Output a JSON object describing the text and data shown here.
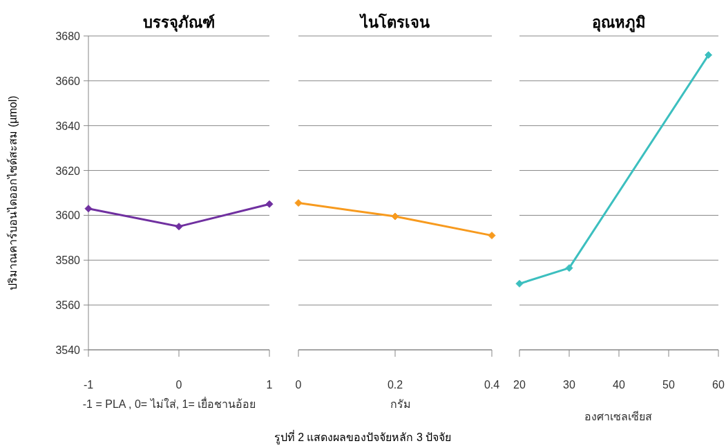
{
  "chart_data": [
    {
      "type": "line",
      "title": "บรรจุภัณฑ์",
      "xlabel": "-1 = PLA , 0= ไม่ใส่, 1= เยื่อชานอ้อย",
      "ylabel": "ปริมาณคาร์บอนไดออกไซด์สะสม (µmol)",
      "x": [
        -1,
        0,
        1
      ],
      "xlim": [
        -1,
        1
      ],
      "xticks": [
        -1,
        0,
        1
      ],
      "ylim": [
        3540,
        3680
      ],
      "yticks": [
        3540,
        3560,
        3580,
        3600,
        3620,
        3640,
        3660,
        3680
      ],
      "grid": "y",
      "marker": "diamond",
      "line_style": "solid",
      "series": [
        {
          "color": "#7030a0",
          "values": [
            3603,
            3595,
            3605
          ]
        }
      ]
    },
    {
      "type": "line",
      "title": "ไนโตรเจน",
      "xlabel": "กรัม",
      "x": [
        0,
        0.2,
        0.4
      ],
      "xlim": [
        0,
        0.4
      ],
      "xticks": [
        0,
        0.2,
        0.4
      ],
      "ylim": [
        3540,
        3680
      ],
      "yticks": [
        3540,
        3560,
        3580,
        3600,
        3620,
        3640,
        3660,
        3680
      ],
      "grid": "y",
      "tick_labels": "x",
      "marker": "diamond",
      "line_style": "solid",
      "series": [
        {
          "color": "#f79a1e",
          "values": [
            3605.5,
            3599.5,
            3591
          ]
        }
      ],
      "annotations": [
        "รูปที่ 2 แสดงผลของปัจจัยหลัก 3 ปัจจัย"
      ]
    },
    {
      "type": "line",
      "title": "อุณหภูมิ",
      "xlabel": "องศาเซลเซียส",
      "x": [
        20,
        30,
        58
      ],
      "xlim": [
        20,
        60
      ],
      "xticks": [
        20,
        30,
        40,
        50,
        60
      ],
      "ylim": [
        3540,
        3680
      ],
      "yticks": [
        3540,
        3560,
        3580,
        3600,
        3620,
        3640,
        3660,
        3680
      ],
      "grid": "y",
      "tick_labels": "x",
      "marker": "diamond",
      "line_style": "solid",
      "series": [
        {
          "color": "#3cbfbf",
          "values": [
            3569.5,
            3576.5,
            3671.5
          ]
        }
      ]
    }
  ]
}
